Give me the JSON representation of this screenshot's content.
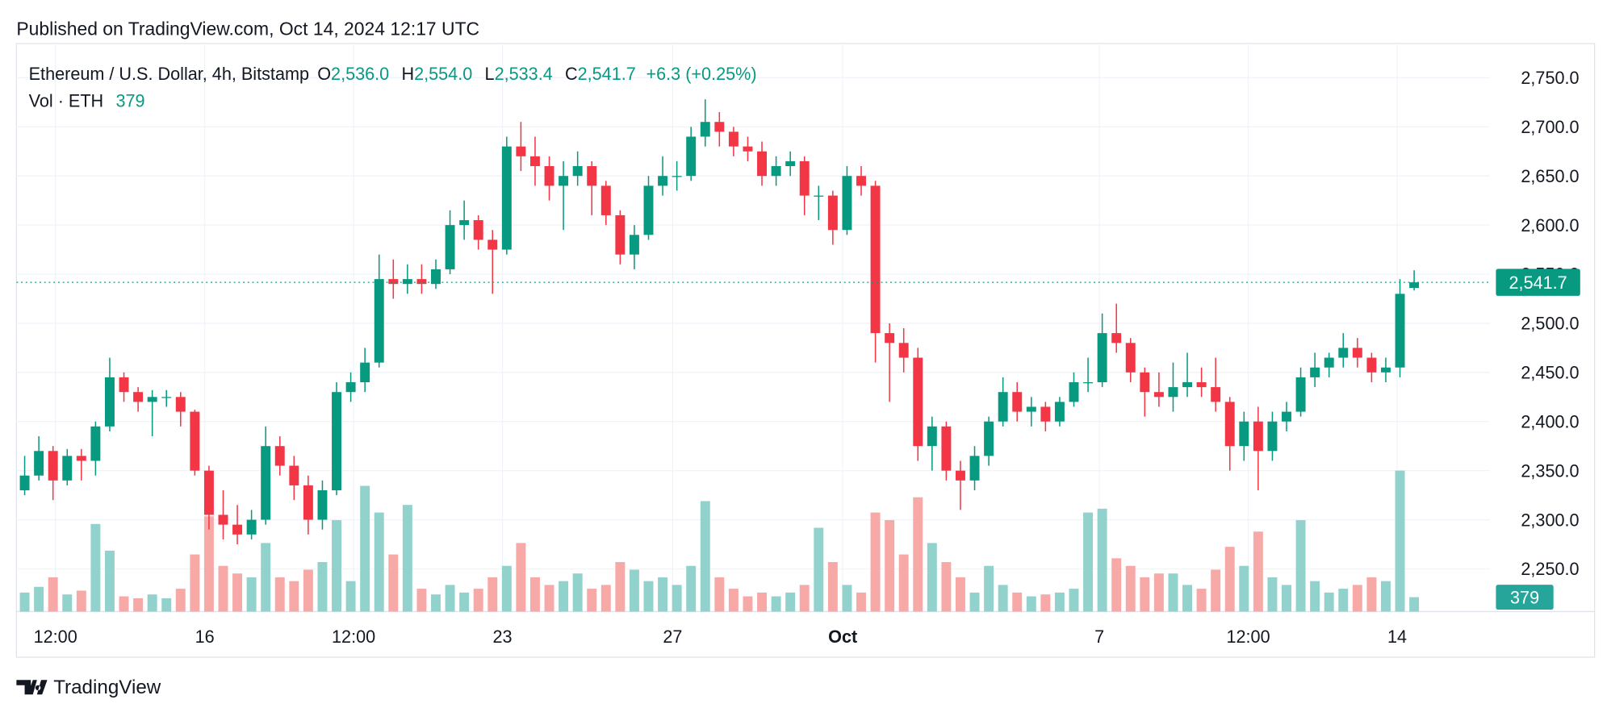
{
  "header": {
    "published": "Published on TradingView.com, Oct 14, 2024 12:17 UTC"
  },
  "chart_data": {
    "type": "candlestick",
    "title": "Ethereum / U.S. Dollar, 4h, Bitstamp",
    "ohlc_labels": {
      "o": "O",
      "open": "2,536.0",
      "h": "H",
      "high": "2,554.0",
      "l": "L",
      "low": "2,533.4",
      "c": "C",
      "close": "2,541.7"
    },
    "change": "+6.3 (+0.25%)",
    "volume_title": "Vol · ETH",
    "volume_label": "379",
    "last_price_label": "2,541.7",
    "up_color": "#089981",
    "down_color": "#f23645",
    "up_volume_color": "#92d2cc",
    "down_volume_color": "#f7a9a7",
    "grid": true,
    "ylim": [
      2206.5,
      2784.8
    ],
    "yticks": [
      {
        "value": 2250,
        "label": "2,250.0"
      },
      {
        "value": 2300,
        "label": "2,300.0"
      },
      {
        "value": 2350,
        "label": "2,350.0"
      },
      {
        "value": 2400,
        "label": "2,400.0"
      },
      {
        "value": 2450,
        "label": "2,450.0"
      },
      {
        "value": 2500,
        "label": "2,500.0"
      },
      {
        "value": 2550,
        "label": "2,550.0"
      },
      {
        "value": 2600,
        "label": "2,600.0"
      },
      {
        "value": 2650,
        "label": "2,650.0"
      },
      {
        "value": 2700,
        "label": "2,700.0"
      },
      {
        "value": 2750,
        "label": "2,750.0"
      }
    ],
    "xticks": [
      {
        "value": 2.17,
        "label": "12:00"
      },
      {
        "value": 12.7,
        "label": "16"
      },
      {
        "value": 23.2,
        "label": "12:00"
      },
      {
        "value": 33.7,
        "label": "23"
      },
      {
        "value": 45.7,
        "label": "27"
      },
      {
        "value": 57.7,
        "label": "Oct",
        "bold": true
      },
      {
        "value": 75.8,
        "label": "7"
      },
      {
        "value": 86.3,
        "label": "12:00"
      },
      {
        "value": 96.8,
        "label": "14"
      }
    ],
    "candles": [
      [
        2330,
        2365,
        2325,
        2345,
        500
      ],
      [
        2345,
        2385,
        2340,
        2370,
        650
      ],
      [
        2370,
        2375,
        2320,
        2340,
        900
      ],
      [
        2340,
        2372,
        2335,
        2365,
        450
      ],
      [
        2365,
        2372,
        2340,
        2360,
        550
      ],
      [
        2360,
        2400,
        2345,
        2395,
        2300
      ],
      [
        2395,
        2465,
        2390,
        2445,
        1600
      ],
      [
        2445,
        2450,
        2420,
        2430,
        400
      ],
      [
        2430,
        2435,
        2410,
        2420,
        350
      ],
      [
        2420,
        2432,
        2385,
        2425,
        450
      ],
      [
        2425,
        2432,
        2415,
        2425,
        350
      ],
      [
        2425,
        2430,
        2395,
        2410,
        600
      ],
      [
        2410,
        2412,
        2345,
        2350,
        1500
      ],
      [
        2350,
        2355,
        2290,
        2305,
        2500
      ],
      [
        2305,
        2330,
        2280,
        2295,
        1200
      ],
      [
        2295,
        2315,
        2275,
        2285,
        1000
      ],
      [
        2285,
        2310,
        2280,
        2300,
        900
      ],
      [
        2300,
        2395,
        2295,
        2375,
        1800
      ],
      [
        2375,
        2385,
        2345,
        2355,
        900
      ],
      [
        2355,
        2365,
        2320,
        2335,
        800
      ],
      [
        2335,
        2345,
        2285,
        2300,
        1100
      ],
      [
        2300,
        2340,
        2290,
        2330,
        1300
      ],
      [
        2330,
        2440,
        2325,
        2430,
        2400
      ],
      [
        2430,
        2450,
        2420,
        2440,
        800
      ],
      [
        2440,
        2475,
        2430,
        2460,
        3300
      ],
      [
        2460,
        2570,
        2455,
        2545,
        2600
      ],
      [
        2545,
        2565,
        2525,
        2540,
        1500
      ],
      [
        2540,
        2560,
        2530,
        2545,
        2800
      ],
      [
        2545,
        2560,
        2530,
        2540,
        600
      ],
      [
        2540,
        2565,
        2535,
        2555,
        450
      ],
      [
        2555,
        2615,
        2550,
        2600,
        700
      ],
      [
        2600,
        2625,
        2585,
        2605,
        500
      ],
      [
        2605,
        2610,
        2575,
        2585,
        600
      ],
      [
        2585,
        2595,
        2530,
        2575,
        900
      ],
      [
        2575,
        2690,
        2570,
        2680,
        1200
      ],
      [
        2680,
        2705,
        2655,
        2670,
        1800
      ],
      [
        2670,
        2690,
        2640,
        2660,
        900
      ],
      [
        2660,
        2670,
        2625,
        2640,
        700
      ],
      [
        2640,
        2665,
        2595,
        2650,
        800
      ],
      [
        2650,
        2675,
        2640,
        2660,
        1000
      ],
      [
        2660,
        2665,
        2610,
        2640,
        600
      ],
      [
        2640,
        2645,
        2600,
        2610,
        700
      ],
      [
        2610,
        2615,
        2560,
        2570,
        1300
      ],
      [
        2570,
        2600,
        2555,
        2590,
        1100
      ],
      [
        2590,
        2650,
        2585,
        2640,
        800
      ],
      [
        2640,
        2670,
        2630,
        2650,
        900
      ],
      [
        2650,
        2665,
        2635,
        2650,
        700
      ],
      [
        2650,
        2700,
        2645,
        2690,
        1200
      ],
      [
        2690,
        2728,
        2680,
        2705,
        2900
      ],
      [
        2705,
        2715,
        2680,
        2695,
        900
      ],
      [
        2695,
        2700,
        2670,
        2680,
        600
      ],
      [
        2680,
        2690,
        2665,
        2675,
        400
      ],
      [
        2675,
        2685,
        2640,
        2650,
        500
      ],
      [
        2650,
        2670,
        2640,
        2660,
        400
      ],
      [
        2660,
        2675,
        2650,
        2665,
        500
      ],
      [
        2665,
        2670,
        2610,
        2630,
        700
      ],
      [
        2630,
        2640,
        2605,
        2630,
        2200
      ],
      [
        2630,
        2635,
        2580,
        2595,
        1300
      ],
      [
        2595,
        2660,
        2590,
        2650,
        700
      ],
      [
        2650,
        2660,
        2630,
        2640,
        500
      ],
      [
        2640,
        2645,
        2460,
        2490,
        2600
      ],
      [
        2490,
        2500,
        2420,
        2480,
        2400
      ],
      [
        2480,
        2495,
        2450,
        2465,
        1500
      ],
      [
        2465,
        2475,
        2360,
        2375,
        3000
      ],
      [
        2375,
        2405,
        2350,
        2395,
        1800
      ],
      [
        2395,
        2400,
        2340,
        2350,
        1300
      ],
      [
        2350,
        2360,
        2310,
        2340,
        900
      ],
      [
        2340,
        2375,
        2330,
        2365,
        500
      ],
      [
        2365,
        2405,
        2355,
        2400,
        1200
      ],
      [
        2400,
        2445,
        2395,
        2430,
        700
      ],
      [
        2430,
        2440,
        2400,
        2410,
        500
      ],
      [
        2410,
        2425,
        2395,
        2415,
        400
      ],
      [
        2415,
        2420,
        2390,
        2400,
        450
      ],
      [
        2400,
        2425,
        2395,
        2420,
        500
      ],
      [
        2420,
        2450,
        2415,
        2440,
        600
      ],
      [
        2440,
        2465,
        2430,
        2440,
        2600
      ],
      [
        2440,
        2510,
        2435,
        2490,
        2700
      ],
      [
        2490,
        2520,
        2470,
        2480,
        1400
      ],
      [
        2480,
        2485,
        2440,
        2450,
        1200
      ],
      [
        2450,
        2455,
        2405,
        2430,
        900
      ],
      [
        2430,
        2450,
        2415,
        2425,
        1000
      ],
      [
        2425,
        2460,
        2410,
        2435,
        1000
      ],
      [
        2435,
        2470,
        2425,
        2440,
        700
      ],
      [
        2440,
        2455,
        2425,
        2435,
        600
      ],
      [
        2435,
        2465,
        2410,
        2420,
        1100
      ],
      [
        2420,
        2425,
        2350,
        2375,
        1700
      ],
      [
        2375,
        2410,
        2360,
        2400,
        1200
      ],
      [
        2400,
        2415,
        2330,
        2370,
        2100
      ],
      [
        2370,
        2410,
        2360,
        2400,
        900
      ],
      [
        2400,
        2420,
        2390,
        2410,
        700
      ],
      [
        2410,
        2455,
        2405,
        2445,
        2400
      ],
      [
        2445,
        2470,
        2435,
        2455,
        800
      ],
      [
        2455,
        2470,
        2445,
        2465,
        500
      ],
      [
        2465,
        2490,
        2455,
        2475,
        600
      ],
      [
        2475,
        2485,
        2455,
        2465,
        700
      ],
      [
        2465,
        2470,
        2440,
        2450,
        900
      ],
      [
        2450,
        2465,
        2440,
        2455,
        800
      ],
      [
        2455,
        2545,
        2445,
        2530,
        3700
      ],
      [
        2536.0,
        2554.0,
        2533.4,
        2541.7,
        379
      ]
    ]
  },
  "footer": {
    "brand": "TradingView"
  }
}
